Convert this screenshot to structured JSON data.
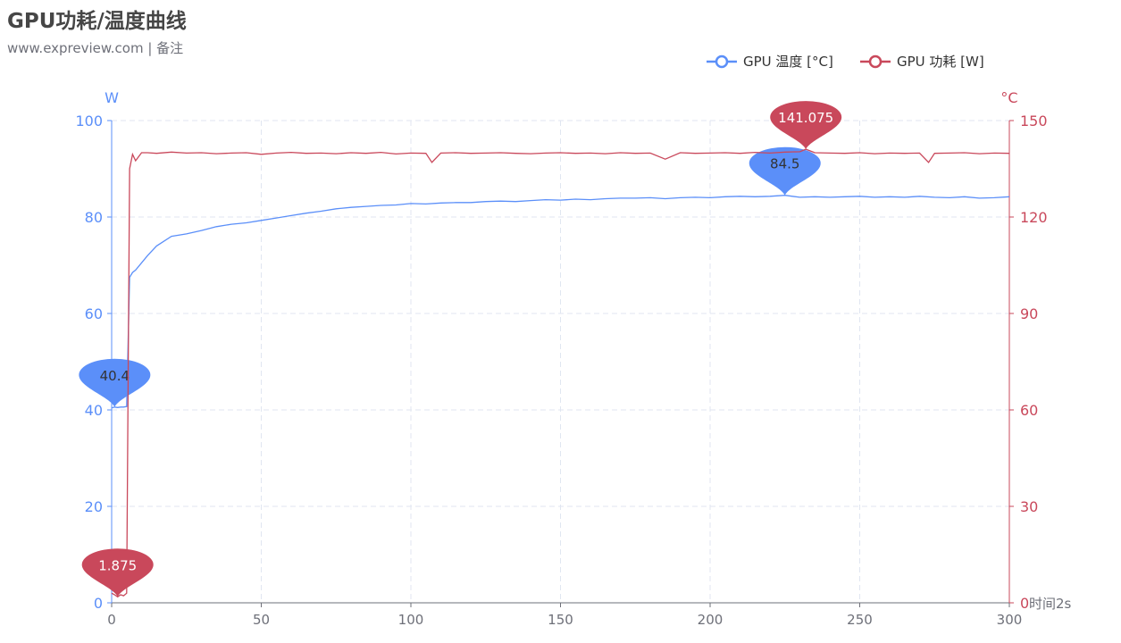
{
  "chart_data": {
    "type": "line",
    "title": "GPU功耗/温度曲线",
    "subtitle": "www.expreview.com | 备注",
    "xlabel": "时间2s",
    "xlim": [
      0,
      300
    ],
    "x_ticks": [
      "0",
      "50",
      "100",
      "150",
      "200",
      "250",
      "300"
    ],
    "y_left": {
      "label": "W",
      "range": [
        0,
        100
      ],
      "ticks": [
        "0",
        "20",
        "40",
        "60",
        "80",
        "100"
      ],
      "color": "#5b8ff9"
    },
    "y_right": {
      "label": "°C",
      "range": [
        0,
        150
      ],
      "ticks": [
        "0",
        "30",
        "60",
        "90",
        "120",
        "150"
      ],
      "color": "#c9485b"
    },
    "grid": true,
    "legend_position": "top-right",
    "series": [
      {
        "name": "GPU 温度 [°C]",
        "axis": "left",
        "color": "#5b8ff9",
        "x": [
          0,
          1,
          2,
          3,
          4,
          5,
          6,
          7,
          8,
          10,
          12,
          15,
          20,
          25,
          30,
          35,
          40,
          45,
          50,
          55,
          60,
          65,
          70,
          75,
          80,
          85,
          90,
          95,
          100,
          105,
          110,
          115,
          120,
          125,
          130,
          135,
          140,
          145,
          150,
          155,
          160,
          165,
          170,
          175,
          180,
          185,
          190,
          195,
          200,
          205,
          210,
          215,
          220,
          225,
          230,
          235,
          240,
          245,
          250,
          255,
          260,
          265,
          270,
          275,
          280,
          285,
          290,
          295,
          300
        ],
        "y": [
          40.4,
          40.6,
          40.5,
          40.6,
          40.6,
          40.7,
          67.5,
          68.5,
          69,
          70.5,
          72,
          74,
          76,
          76.5,
          77.2,
          78,
          78.5,
          78.8,
          79.3,
          79.8,
          80.3,
          80.8,
          81.2,
          81.7,
          82,
          82.2,
          82.4,
          82.5,
          82.8,
          82.7,
          82.9,
          83,
          83,
          83.2,
          83.3,
          83.2,
          83.4,
          83.6,
          83.5,
          83.7,
          83.6,
          83.8,
          83.9,
          83.9,
          84,
          83.8,
          84,
          84.1,
          84,
          84.2,
          84.3,
          84.2,
          84.3,
          84.5,
          84.1,
          84.2,
          84.1,
          84.2,
          84.3,
          84.1,
          84.2,
          84.1,
          84.3,
          84.1,
          84,
          84.2,
          83.9,
          84,
          84.2
        ],
        "markers": [
          {
            "type": "max",
            "x": 225,
            "value": "84.5"
          },
          {
            "type": "min",
            "x": 1,
            "value": "40.4"
          }
        ]
      },
      {
        "name": "GPU 功耗 [W]",
        "axis": "right",
        "color": "#c9485b",
        "x": [
          0,
          1,
          2,
          3,
          4,
          5,
          6,
          7,
          8,
          10,
          12,
          15,
          20,
          25,
          30,
          35,
          40,
          45,
          50,
          55,
          60,
          65,
          70,
          75,
          80,
          85,
          90,
          95,
          100,
          105,
          107,
          110,
          115,
          120,
          125,
          130,
          135,
          140,
          145,
          150,
          155,
          160,
          165,
          170,
          175,
          180,
          185,
          190,
          195,
          200,
          205,
          210,
          215,
          220,
          225,
          230,
          232,
          235,
          240,
          245,
          250,
          255,
          260,
          265,
          270,
          273,
          275,
          280,
          285,
          290,
          295,
          300
        ],
        "y": [
          3,
          2.5,
          1.875,
          2.5,
          2.2,
          3,
          135,
          139.5,
          137.5,
          140,
          140,
          139.8,
          140.2,
          139.9,
          140,
          139.7,
          139.9,
          140,
          139.5,
          139.9,
          140.1,
          139.8,
          139.9,
          139.7,
          140,
          139.8,
          140.1,
          139.6,
          139.9,
          139.8,
          137,
          139.9,
          140,
          139.8,
          139.9,
          140,
          139.8,
          139.7,
          139.9,
          140,
          139.8,
          139.9,
          139.7,
          140,
          139.8,
          139.9,
          138,
          140,
          139.8,
          139.9,
          140,
          139.8,
          140.1,
          139.9,
          140.2,
          140.3,
          141.075,
          140,
          139.9,
          139.8,
          140,
          139.7,
          139.9,
          139.8,
          139.9,
          137,
          139.8,
          139.9,
          140,
          139.7,
          139.9,
          139.8
        ],
        "markers": [
          {
            "type": "max",
            "x": 232,
            "value": "141.075"
          },
          {
            "type": "min",
            "x": 2,
            "value": "1.875"
          }
        ]
      }
    ]
  }
}
